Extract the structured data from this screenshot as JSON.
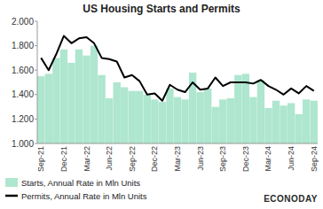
{
  "chart_data": {
    "type": "bar",
    "title": "US Housing Starts and Permits",
    "logo": "ECONODAY",
    "categories": [
      "Sep-21",
      null,
      null,
      "Dec-21",
      null,
      null,
      "Mar-22",
      null,
      null,
      "Jun-22",
      null,
      null,
      "Sep-22",
      null,
      null,
      "Dec-22",
      null,
      null,
      "Mar-23",
      null,
      null,
      "Jun-23",
      null,
      null,
      "Sep-23",
      null,
      null,
      "Dec-23",
      null,
      null,
      "Mar-24",
      null,
      null,
      "Jun-24",
      null,
      null,
      "Sep-24"
    ],
    "series": [
      {
        "name": "Starts, Annual Rate in Mln Units",
        "type": "bar",
        "color": "#aee6cf",
        "values": [
          1.55,
          1.57,
          1.7,
          1.77,
          1.66,
          1.77,
          1.72,
          1.8,
          1.56,
          1.37,
          1.5,
          1.46,
          1.43,
          1.43,
          1.4,
          1.36,
          1.34,
          1.45,
          1.38,
          1.36,
          1.58,
          1.42,
          1.45,
          1.3,
          1.36,
          1.37,
          1.56,
          1.57,
          1.38,
          1.52,
          1.29,
          1.35,
          1.31,
          1.33,
          1.24,
          1.36,
          1.35
        ]
      },
      {
        "name": "Permits, Annual Rate in Mln Units",
        "type": "line",
        "color": "#000000",
        "values": [
          1.7,
          1.6,
          1.73,
          1.88,
          1.82,
          1.86,
          1.87,
          1.82,
          1.7,
          1.69,
          1.67,
          1.54,
          1.56,
          1.51,
          1.4,
          1.41,
          1.35,
          1.48,
          1.44,
          1.42,
          1.5,
          1.44,
          1.45,
          1.54,
          1.47,
          1.5,
          1.5,
          1.5,
          1.49,
          1.52,
          1.47,
          1.44,
          1.4,
          1.45,
          1.41,
          1.47,
          1.43
        ]
      }
    ],
    "ylim": [
      1,
      2
    ],
    "yticks": [
      {
        "value": 1,
        "label": "1.000"
      },
      {
        "value": 1.2,
        "label": "1.200"
      },
      {
        "value": 1.4,
        "label": "1.400"
      },
      {
        "value": 1.6,
        "label": "1.600"
      },
      {
        "value": 1.8,
        "label": "1.800"
      },
      {
        "value": 2,
        "label": "2.000"
      }
    ],
    "grid": false,
    "legend": "bottom-left"
  }
}
